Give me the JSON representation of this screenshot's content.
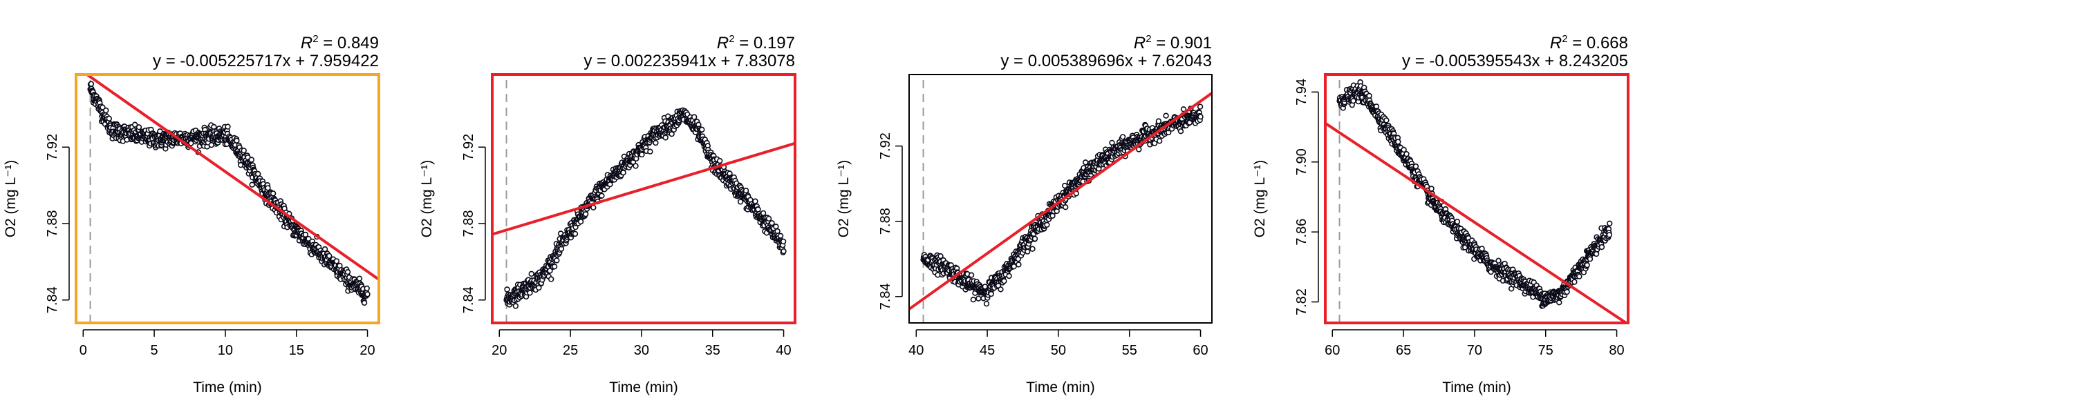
{
  "chart_data": [
    {
      "type": "scatter",
      "xlabel": "Time (min)",
      "ylabel": "O2 (mg L⁻¹)",
      "xlim": [
        -0.5,
        20.8
      ],
      "ylim": [
        7.828,
        7.958
      ],
      "xticks": [
        0,
        5,
        10,
        15,
        20
      ],
      "yticks": [
        7.84,
        7.88,
        7.92
      ],
      "tick_labels_x": [
        "0",
        "5",
        "10",
        "15",
        "20"
      ],
      "tick_labels_y": [
        "7.84",
        "7.88",
        "7.92"
      ],
      "annotations": {
        "r2_value": "= 0.849",
        "equation": "y = -0.005225717x + 7.959422"
      },
      "fit": {
        "slope": -0.005225717,
        "intercept": 7.959422
      },
      "window_start": 0.5,
      "frame_color": "#F5A623",
      "trend": [
        [
          0.5,
          7.951
        ],
        [
          2,
          7.929
        ],
        [
          5,
          7.924
        ],
        [
          8,
          7.925
        ],
        [
          10,
          7.926
        ],
        [
          11,
          7.918
        ],
        [
          13,
          7.895
        ],
        [
          15,
          7.876
        ],
        [
          17,
          7.862
        ],
        [
          19,
          7.848
        ],
        [
          20,
          7.843
        ]
      ]
    },
    {
      "type": "scatter",
      "xlabel": "Time (min)",
      "ylabel": "O2 (mg L⁻¹)",
      "xlim": [
        19.5,
        40.8
      ],
      "ylim": [
        7.828,
        7.958
      ],
      "xticks": [
        20,
        25,
        30,
        35,
        40
      ],
      "yticks": [
        7.84,
        7.88,
        7.92
      ],
      "tick_labels_x": [
        "20",
        "25",
        "30",
        "35",
        "40"
      ],
      "tick_labels_y": [
        "7.84",
        "7.88",
        "7.92"
      ],
      "annotations": {
        "r2_value": "= 0.197",
        "equation": "y = 0.002235941x + 7.83078"
      },
      "fit": {
        "slope": 0.002235941,
        "intercept": 7.83078
      },
      "window_start": 20.5,
      "frame_color": "#E8202A",
      "trend": [
        [
          20.5,
          7.84
        ],
        [
          23,
          7.852
        ],
        [
          25,
          7.876
        ],
        [
          27,
          7.897
        ],
        [
          29,
          7.912
        ],
        [
          31,
          7.927
        ],
        [
          33,
          7.937
        ],
        [
          34,
          7.928
        ],
        [
          35,
          7.912
        ],
        [
          37,
          7.896
        ],
        [
          39,
          7.878
        ],
        [
          40,
          7.868
        ]
      ]
    },
    {
      "type": "scatter",
      "xlabel": "Time (min)",
      "ylabel": "O2 (mg L⁻¹)",
      "xlim": [
        39.5,
        60.8
      ],
      "ylim": [
        7.826,
        7.958
      ],
      "xticks": [
        40,
        45,
        50,
        55,
        60
      ],
      "yticks": [
        7.84,
        7.88,
        7.92
      ],
      "tick_labels_x": [
        "40",
        "45",
        "50",
        "55",
        "60"
      ],
      "tick_labels_y": [
        "7.84",
        "7.88",
        "7.92"
      ],
      "annotations": {
        "r2_value": "= 0.901",
        "equation": "y = 0.005389696x + 7.62043"
      },
      "fit": {
        "slope": 0.005389696,
        "intercept": 7.62043
      },
      "window_start": 40.5,
      "frame_color": "#000000",
      "trend": [
        [
          40.5,
          7.86
        ],
        [
          42,
          7.856
        ],
        [
          44,
          7.845
        ],
        [
          45,
          7.843
        ],
        [
          46,
          7.85
        ],
        [
          48,
          7.872
        ],
        [
          50,
          7.89
        ],
        [
          52,
          7.906
        ],
        [
          54,
          7.917
        ],
        [
          56,
          7.925
        ],
        [
          58,
          7.931
        ],
        [
          60,
          7.936
        ]
      ]
    },
    {
      "type": "scatter",
      "xlabel": "Time (min)",
      "ylabel": "O2 (mg L⁻¹)",
      "xlim": [
        59.5,
        80.8
      ],
      "ylim": [
        7.808,
        7.95
      ],
      "xticks": [
        60,
        65,
        70,
        75,
        80
      ],
      "yticks": [
        7.82,
        7.86,
        7.9,
        7.94
      ],
      "tick_labels_x": [
        "60",
        "65",
        "70",
        "75",
        "80"
      ],
      "tick_labels_y": [
        "7.82",
        "7.86",
        "7.90",
        "7.94"
      ],
      "annotations": {
        "r2_value": "= 0.668",
        "equation": "y = -0.005395543x + 8.243205"
      },
      "fit": {
        "slope": -0.005395543,
        "intercept": 8.243205
      },
      "window_start": 60.5,
      "frame_color": "#E8202A",
      "trend": [
        [
          60.5,
          7.935
        ],
        [
          62,
          7.94
        ],
        [
          63,
          7.93
        ],
        [
          65,
          7.904
        ],
        [
          67,
          7.878
        ],
        [
          69,
          7.858
        ],
        [
          71,
          7.842
        ],
        [
          73,
          7.833
        ],
        [
          75,
          7.822
        ],
        [
          76,
          7.824
        ],
        [
          77,
          7.835
        ],
        [
          78,
          7.846
        ],
        [
          79.5,
          7.862
        ]
      ]
    }
  ]
}
